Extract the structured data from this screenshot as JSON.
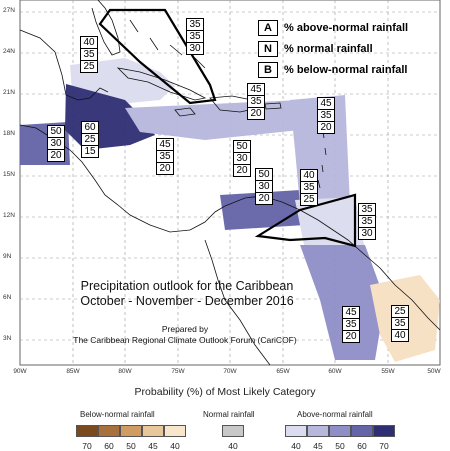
{
  "axes": {
    "y_labels": [
      "27N",
      "24N",
      "21N",
      "18N",
      "15N",
      "12N",
      "9N",
      "6N",
      "3N"
    ],
    "x_labels": [
      "90W",
      "85W",
      "80W",
      "75W",
      "70W",
      "65W",
      "60W",
      "55W",
      "50W"
    ]
  },
  "legend": [
    {
      "letter": "A",
      "text": "% above-normal rainfall"
    },
    {
      "letter": "N",
      "text": "% normal rainfall"
    },
    {
      "letter": "B",
      "text": "% below-normal rainfall"
    }
  ],
  "probability_boxes": [
    {
      "id": "bahamas",
      "values": [
        "35",
        "35",
        "30"
      ]
    },
    {
      "id": "yucatan-north",
      "values": [
        "40",
        "35",
        "25"
      ]
    },
    {
      "id": "hispaniola-north",
      "values": [
        "45",
        "35",
        "20"
      ]
    },
    {
      "id": "eastern-caribbean",
      "values": [
        "45",
        "35",
        "20"
      ]
    },
    {
      "id": "central-america-west",
      "values": [
        "50",
        "30",
        "20"
      ]
    },
    {
      "id": "central-america",
      "values": [
        "60",
        "25",
        "15"
      ]
    },
    {
      "id": "jamaica",
      "values": [
        "45",
        "35",
        "20"
      ]
    },
    {
      "id": "dominican",
      "values": [
        "50",
        "30",
        "20"
      ]
    },
    {
      "id": "south-caribbean",
      "values": [
        "50",
        "30",
        "20"
      ]
    },
    {
      "id": "lesser-antilles",
      "values": [
        "40",
        "35",
        "25"
      ]
    },
    {
      "id": "trinidad",
      "values": [
        "35",
        "35",
        "30"
      ]
    },
    {
      "id": "guyanas",
      "values": [
        "45",
        "35",
        "20"
      ]
    },
    {
      "id": "french-guiana",
      "values": [
        "25",
        "35",
        "40"
      ]
    }
  ],
  "title_lines": [
    "Precipitation outlook for the Caribbean",
    "October - November - December 2016"
  ],
  "credit_lines": [
    "Prepared by",
    "The Caribbean Regional Climate Outlook Forum (CariCOF)"
  ],
  "scale": {
    "title": "Probability (%) of Most Likely Category",
    "below_label": "Below-normal rainfall",
    "normal_label": "Normal rainfall",
    "above_label": "Above-normal rainfall",
    "below_ticks": [
      "70",
      "60",
      "50",
      "45",
      "40"
    ],
    "normal_ticks": [
      "40"
    ],
    "above_ticks": [
      "40",
      "45",
      "50",
      "60",
      "70"
    ],
    "below_colors": [
      "#7a4a1e",
      "#a8703a",
      "#cf9c63",
      "#e8c79b",
      "#f7e6cc"
    ],
    "normal_color": "#c8c8c8",
    "above_colors": [
      "#dcdcf0",
      "#b7b7dd",
      "#8f8fc8",
      "#6464a8",
      "#2e2e74"
    ]
  }
}
